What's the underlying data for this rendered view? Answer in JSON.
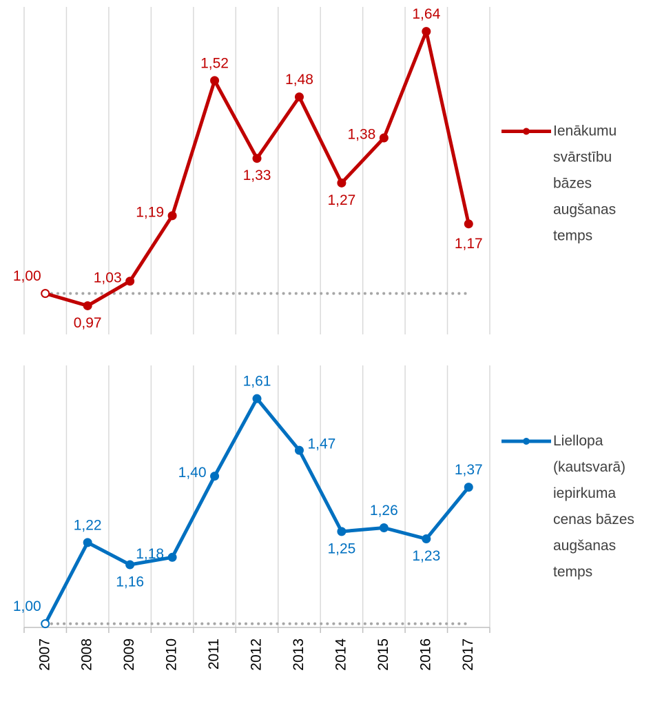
{
  "chart_data": [
    {
      "type": "line",
      "ylim": [
        0.9,
        1.7
      ],
      "reference_line": 1,
      "grid": "vertical",
      "series": [
        {
          "name": "Ienākumu svārstību bāzes augšanas temps",
          "color": "#c00000",
          "values": [
            1.0,
            0.97,
            1.03,
            1.19,
            1.52,
            1.33,
            1.48,
            1.27,
            1.38,
            1.64,
            1.17
          ],
          "value_labels": [
            "1,00",
            "0,97",
            "1,03",
            "1,19",
            "1,52",
            "1,33",
            "1,48",
            "1,27",
            "1,38",
            "1,64",
            "1,17"
          ]
        }
      ]
    },
    {
      "type": "line",
      "ylim": [
        0.99,
        1.7
      ],
      "reference_line": 1,
      "grid": "vertical",
      "categories": [
        "2007",
        "2008",
        "2009",
        "2010",
        "2011",
        "2012",
        "2013",
        "2014",
        "2015",
        "2016",
        "2017"
      ],
      "series": [
        {
          "name": "Liellopa (kautsvarā) iepirkuma cenas bāzes augšanas temps",
          "color": "#0070c0",
          "values": [
            1.0,
            1.22,
            1.16,
            1.18,
            1.4,
            1.61,
            1.47,
            1.25,
            1.26,
            1.23,
            1.37
          ],
          "value_labels": [
            "1,00",
            "1,22",
            "1,16",
            "1,18",
            "1,40",
            "1,61",
            "1,47",
            "1,25",
            "1,26",
            "1,23",
            "1,37"
          ]
        }
      ]
    }
  ]
}
